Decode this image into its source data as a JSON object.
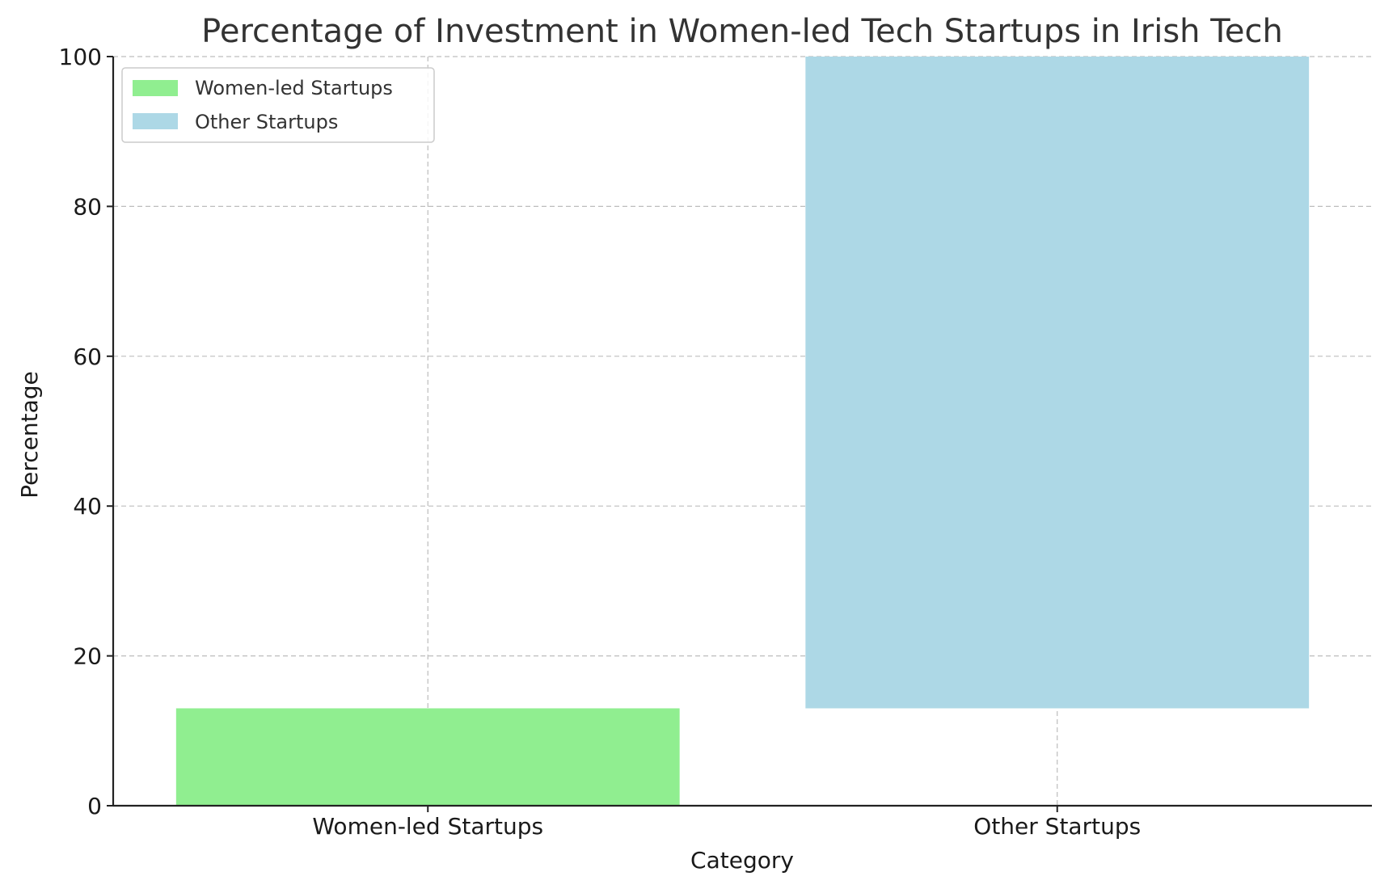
{
  "chart_data": {
    "type": "bar",
    "stacked": true,
    "title": "Percentage of Investment in Women-led Tech Startups in Irish Tech",
    "xlabel": "Category",
    "ylabel": "Percentage",
    "categories": [
      "Women-led Startups",
      "Other Startups"
    ],
    "series": [
      {
        "name": "Women-led Startups",
        "category": "Women-led Startups",
        "bottom": 0,
        "value": 13,
        "color": "#90ee90"
      },
      {
        "name": "Other Startups",
        "category": "Other Startups",
        "bottom": 13,
        "value": 87,
        "color": "#add8e6"
      }
    ],
    "ylim": [
      0,
      100
    ],
    "yticks": [
      0,
      20,
      40,
      60,
      80,
      100
    ],
    "grid": true,
    "legend_position": "top-left"
  }
}
